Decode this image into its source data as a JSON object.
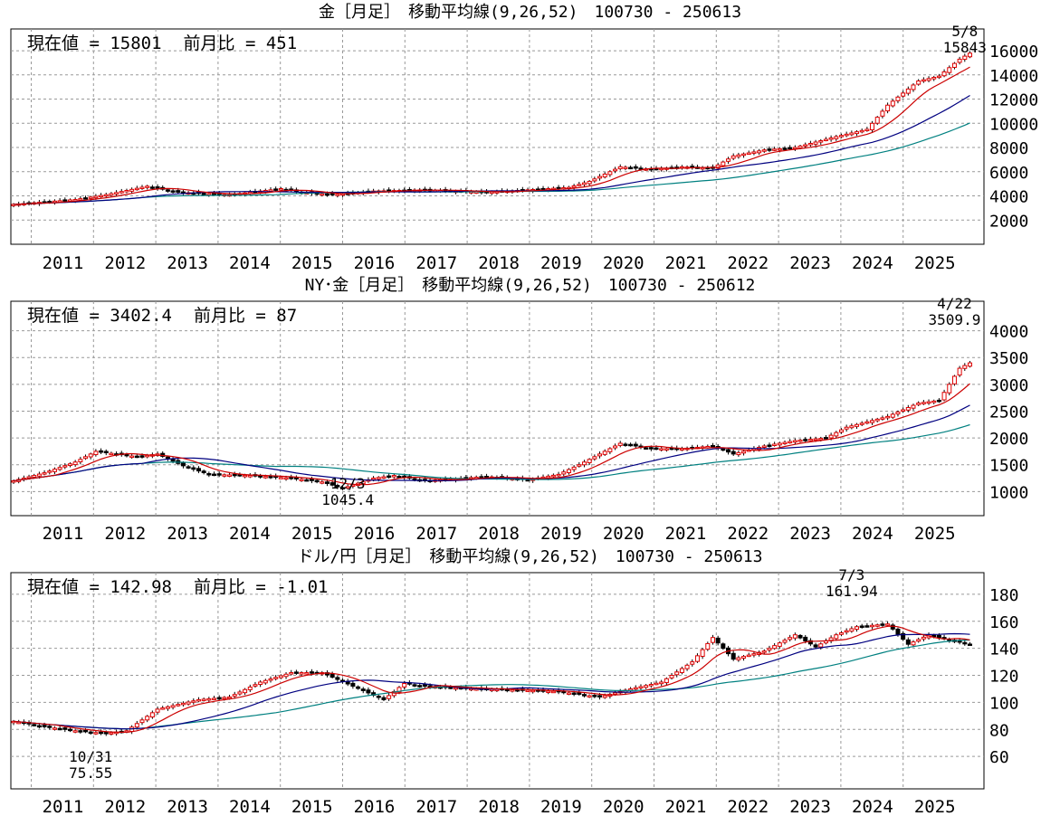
{
  "colors": {
    "up_candle": "#e00000",
    "down_candle": "#000000",
    "ma9": "#cc0000",
    "ma26": "#000080",
    "ma52": "#008080",
    "grid": "#999999",
    "frame": "#000000"
  },
  "chart_data": [
    {
      "type": "candlestick",
      "title": "金［月足］　移動平均線(9,26,52)　100730 - 250613",
      "info_current": "現在値 = 15801",
      "info_change": "前月比 = 451",
      "ylim": [
        0,
        17800
      ],
      "yticks": [
        2000,
        4000,
        6000,
        8000,
        10000,
        12000,
        14000,
        16000
      ],
      "ytick_labels": [
        "2000",
        "4000",
        "6000",
        "8000",
        "10000",
        "12000",
        "14000",
        "16000"
      ],
      "xtick_labels": [
        "2011",
        "2012",
        "2013",
        "2014",
        "2015",
        "2016",
        "2017",
        "2018",
        "2019",
        "2020",
        "2021",
        "2022",
        "2023",
        "2024",
        "2025"
      ],
      "price_anchors": [
        [
          0,
          3300
        ],
        [
          12,
          3700
        ],
        [
          18,
          4100
        ],
        [
          26,
          4800
        ],
        [
          32,
          4300
        ],
        [
          42,
          4100
        ],
        [
          52,
          4600
        ],
        [
          56,
          4300
        ],
        [
          62,
          4100
        ],
        [
          70,
          4400
        ],
        [
          80,
          4500
        ],
        [
          92,
          4300
        ],
        [
          100,
          4500
        ],
        [
          108,
          4700
        ],
        [
          112,
          5200
        ],
        [
          118,
          6400
        ],
        [
          124,
          6200
        ],
        [
          130,
          6400
        ],
        [
          136,
          6300
        ],
        [
          140,
          7300
        ],
        [
          146,
          7800
        ],
        [
          152,
          8000
        ],
        [
          160,
          8900
        ],
        [
          166,
          9500
        ],
        [
          170,
          11500
        ],
        [
          176,
          13500
        ],
        [
          180,
          13900
        ],
        [
          184,
          15300
        ],
        [
          186,
          15800
        ]
      ],
      "annotations": [
        {
          "idx": 185,
          "pos": "above",
          "date": "5/8",
          "value": "15843"
        }
      ]
    },
    {
      "type": "candlestick",
      "title": "NY･金［月足］　移動平均線(9,26,52)　100730 - 250612",
      "info_current": "現在値 = 3402.4",
      "info_change": "前月比 = 87",
      "ylim": [
        550,
        4550
      ],
      "yticks": [
        1000,
        1500,
        2000,
        2500,
        3000,
        3500,
        4000
      ],
      "ytick_labels": [
        "1000",
        "1500",
        "2000",
        "2500",
        "3000",
        "3500",
        "4000"
      ],
      "xtick_labels": [
        "2011",
        "2012",
        "2013",
        "2014",
        "2015",
        "2016",
        "2017",
        "2018",
        "2019",
        "2020",
        "2021",
        "2022",
        "2023",
        "2024",
        "2025"
      ],
      "price_anchors": [
        [
          0,
          1200
        ],
        [
          6,
          1350
        ],
        [
          12,
          1550
        ],
        [
          16,
          1750
        ],
        [
          24,
          1650
        ],
        [
          28,
          1700
        ],
        [
          33,
          1480
        ],
        [
          38,
          1320
        ],
        [
          46,
          1300
        ],
        [
          54,
          1250
        ],
        [
          60,
          1180
        ],
        [
          64,
          1060
        ],
        [
          70,
          1250
        ],
        [
          74,
          1300
        ],
        [
          80,
          1200
        ],
        [
          92,
          1280
        ],
        [
          100,
          1220
        ],
        [
          106,
          1320
        ],
        [
          110,
          1500
        ],
        [
          114,
          1700
        ],
        [
          118,
          1900
        ],
        [
          124,
          1800
        ],
        [
          130,
          1800
        ],
        [
          136,
          1850
        ],
        [
          140,
          1700
        ],
        [
          146,
          1850
        ],
        [
          152,
          1950
        ],
        [
          158,
          2000
        ],
        [
          162,
          2200
        ],
        [
          170,
          2400
        ],
        [
          176,
          2650
        ],
        [
          180,
          2700
        ],
        [
          184,
          3300
        ],
        [
          186,
          3400
        ]
      ],
      "annotations": [
        {
          "idx": 183,
          "pos": "above",
          "date": "4/22",
          "value": "3509.9"
        },
        {
          "idx": 65,
          "pos": "below",
          "date": "12/3",
          "value": "1045.4"
        }
      ]
    },
    {
      "type": "candlestick",
      "title": "ドル/円［月足］　移動平均線(9,26,52)　100730 - 250613",
      "info_current": "現在値 = 142.98",
      "info_change": "前月比 = -1.01",
      "ylim": [
        36,
        196
      ],
      "yticks": [
        60,
        80,
        100,
        120,
        140,
        160,
        180
      ],
      "ytick_labels": [
        "60",
        "80",
        "100",
        "120",
        "140",
        "160",
        "180"
      ],
      "xtick_labels": [
        "2011",
        "2012",
        "2013",
        "2014",
        "2015",
        "2016",
        "2017",
        "2018",
        "2019",
        "2020",
        "2021",
        "2022",
        "2023",
        "2024",
        "2025"
      ],
      "price_anchors": [
        [
          0,
          86
        ],
        [
          6,
          82
        ],
        [
          12,
          79
        ],
        [
          18,
          77
        ],
        [
          22,
          79
        ],
        [
          28,
          95
        ],
        [
          36,
          102
        ],
        [
          42,
          104
        ],
        [
          48,
          115
        ],
        [
          54,
          122
        ],
        [
          60,
          122
        ],
        [
          66,
          112
        ],
        [
          72,
          102
        ],
        [
          76,
          114
        ],
        [
          80,
          112
        ],
        [
          90,
          110
        ],
        [
          100,
          109
        ],
        [
          106,
          108
        ],
        [
          114,
          104
        ],
        [
          120,
          110
        ],
        [
          126,
          115
        ],
        [
          132,
          130
        ],
        [
          136,
          148
        ],
        [
          140,
          132
        ],
        [
          146,
          138
        ],
        [
          152,
          150
        ],
        [
          156,
          141
        ],
        [
          160,
          150
        ],
        [
          164,
          156
        ],
        [
          170,
          158
        ],
        [
          174,
          143
        ],
        [
          178,
          150
        ],
        [
          182,
          146
        ],
        [
          186,
          143
        ]
      ],
      "annotations": [
        {
          "idx": 163,
          "pos": "above",
          "date": "7/3",
          "value": "161.94"
        },
        {
          "idx": 15,
          "pos": "below",
          "date": "10/31",
          "value": "75.55"
        }
      ]
    }
  ]
}
